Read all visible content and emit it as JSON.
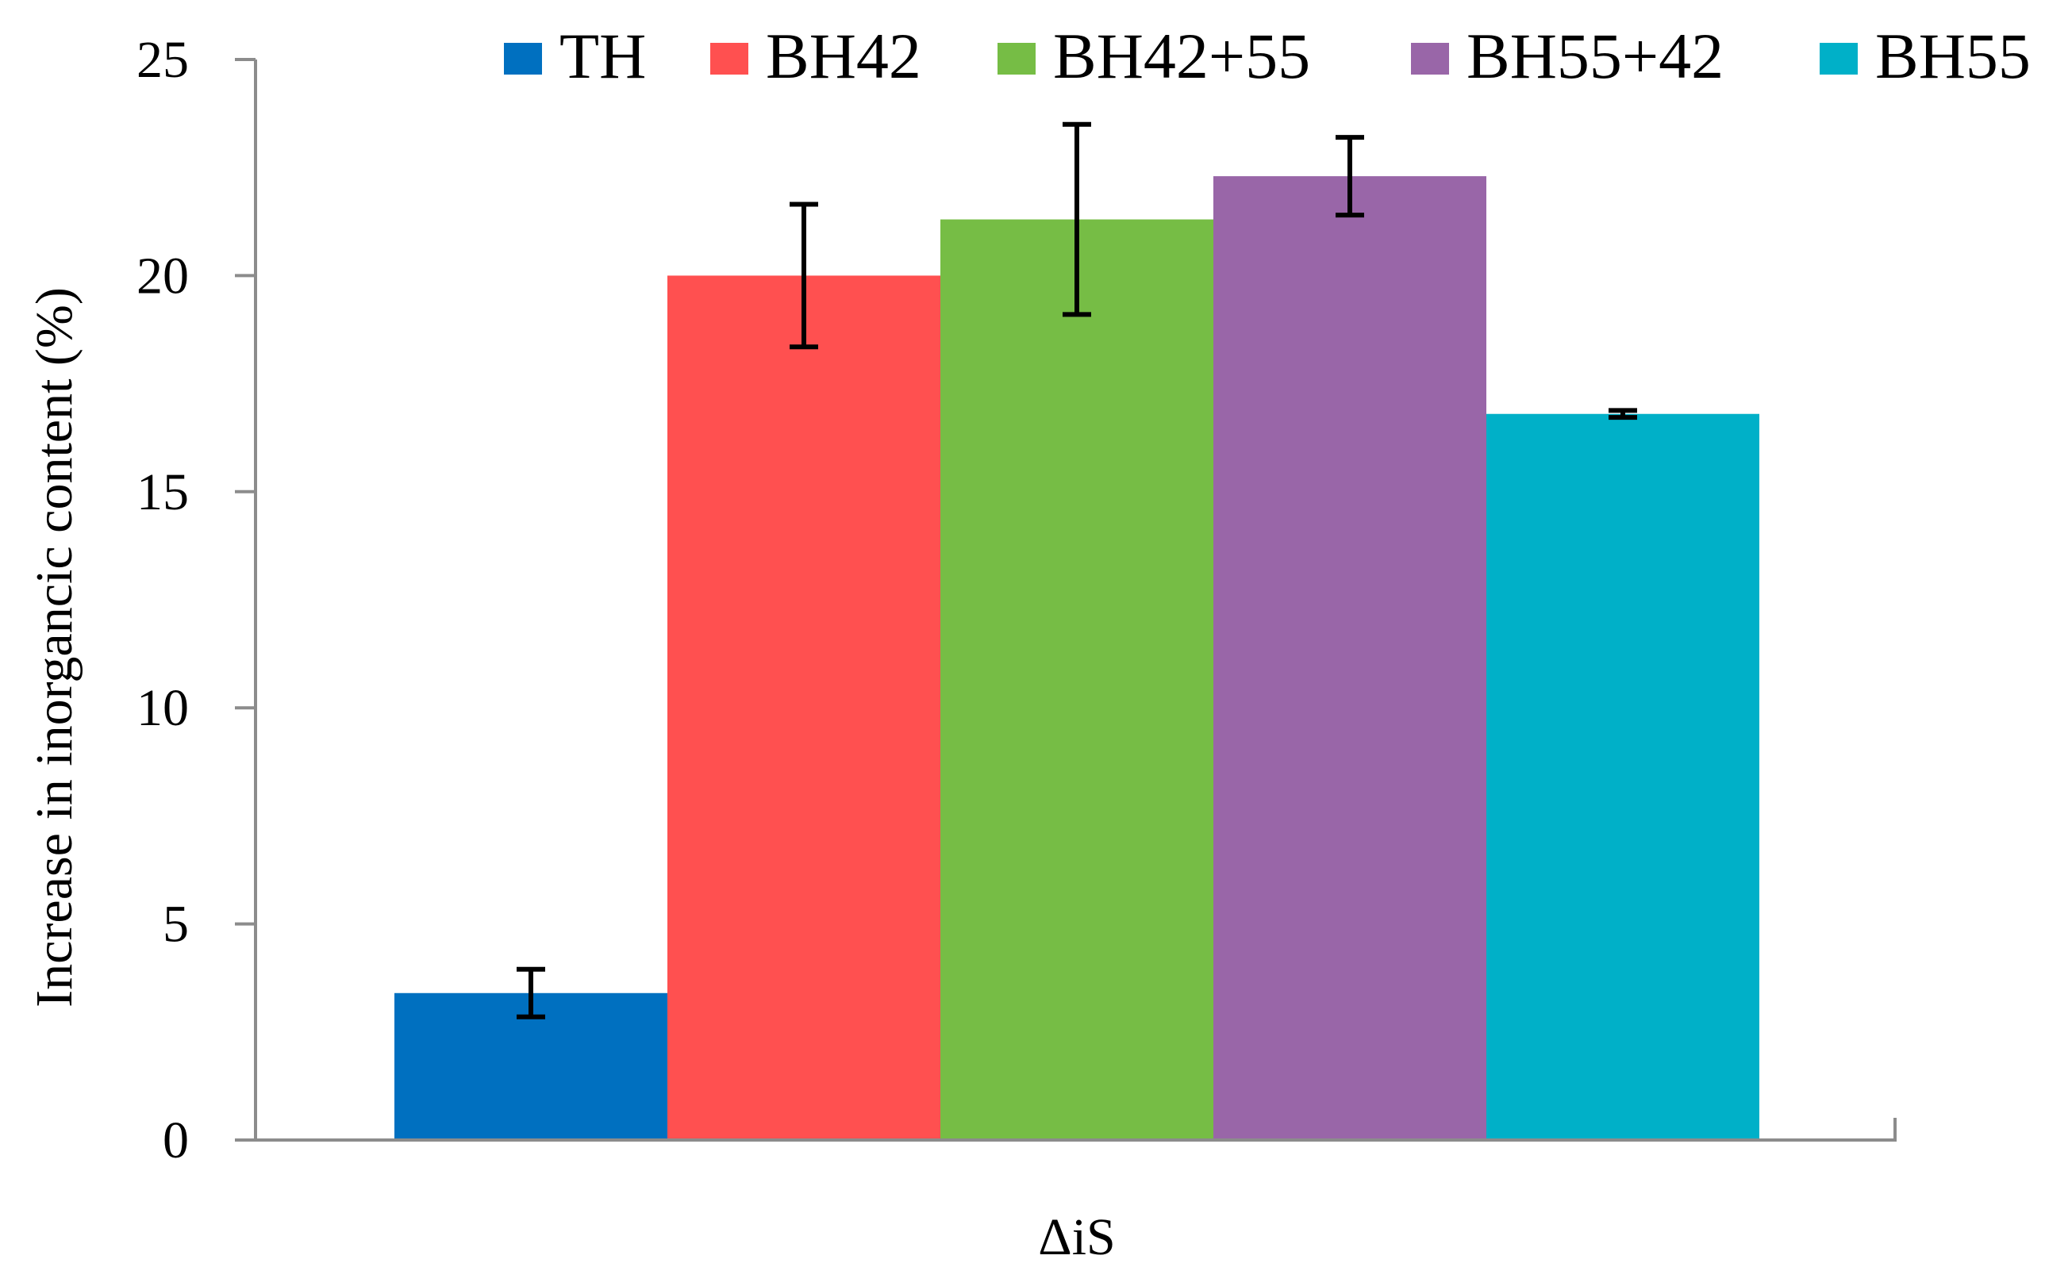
{
  "chart_data": {
    "type": "bar",
    "xlabel": "ΔiS",
    "ylabel": "Increase in inorgancic content (%)",
    "ylim": [
      0,
      25
    ],
    "yticks": [
      0,
      5,
      10,
      15,
      20,
      25
    ],
    "grid": false,
    "legend_position": "top",
    "categories": [
      "ΔiS"
    ],
    "series": [
      {
        "name": "TH",
        "color": "#0070C0",
        "values": [
          3.4
        ],
        "error": [
          0.55
        ]
      },
      {
        "name": "BH42",
        "color": "#FF5050",
        "values": [
          20.0
        ],
        "error": [
          1.65
        ]
      },
      {
        "name": "BH42+55",
        "color": "#76BD45",
        "values": [
          21.3
        ],
        "error": [
          2.2
        ]
      },
      {
        "name": "BH55+42",
        "color": "#9966A8",
        "values": [
          22.3
        ],
        "error": [
          0.9
        ]
      },
      {
        "name": "BH55",
        "color": "#00B0C8",
        "values": [
          16.8
        ],
        "error": [
          0.08
        ]
      }
    ]
  }
}
